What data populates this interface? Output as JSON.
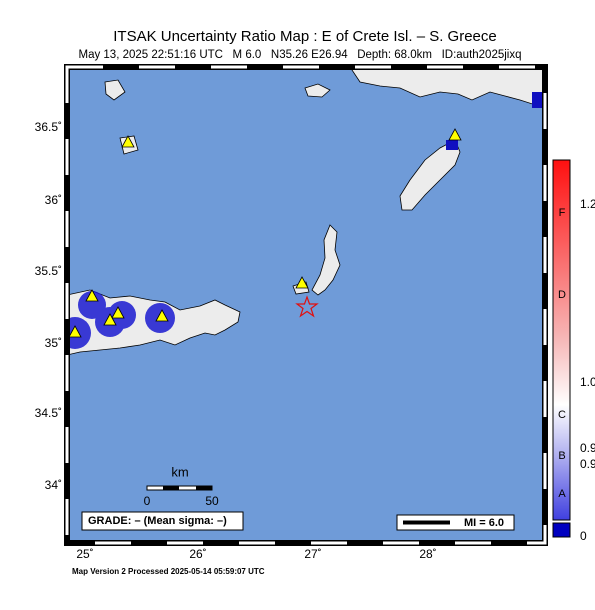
{
  "header": {
    "title": "ITSAK Uncertainty Ratio Map : E of Crete Isl. – S. Greece",
    "subtitle": "May 13, 2025 22:51:16 UTC   M 6.0   N35.26 E26.94   Depth: 68.0km   ID:auth2025jixq"
  },
  "map": {
    "lat_labels": [
      "36.5˚",
      "36˚",
      "35.5˚",
      "35˚",
      "34.5˚",
      "34˚"
    ],
    "lon_labels": [
      "25˚",
      "26˚",
      "27˚",
      "28˚"
    ],
    "scale": {
      "unit": "km",
      "ticks": [
        "0",
        "50"
      ]
    },
    "grade": "GRADE: – (Mean sigma: –)",
    "mi_legend": "MI = 6.0"
  },
  "colorbar": {
    "grades": [
      "F",
      "D",
      "C",
      "B",
      "A"
    ],
    "labels": [
      "1.2",
      "1.0",
      "0.9",
      "0.9",
      "0"
    ]
  },
  "footer": "Map Version 2 Processed 2025-05-14 05:59:07 UTC"
}
